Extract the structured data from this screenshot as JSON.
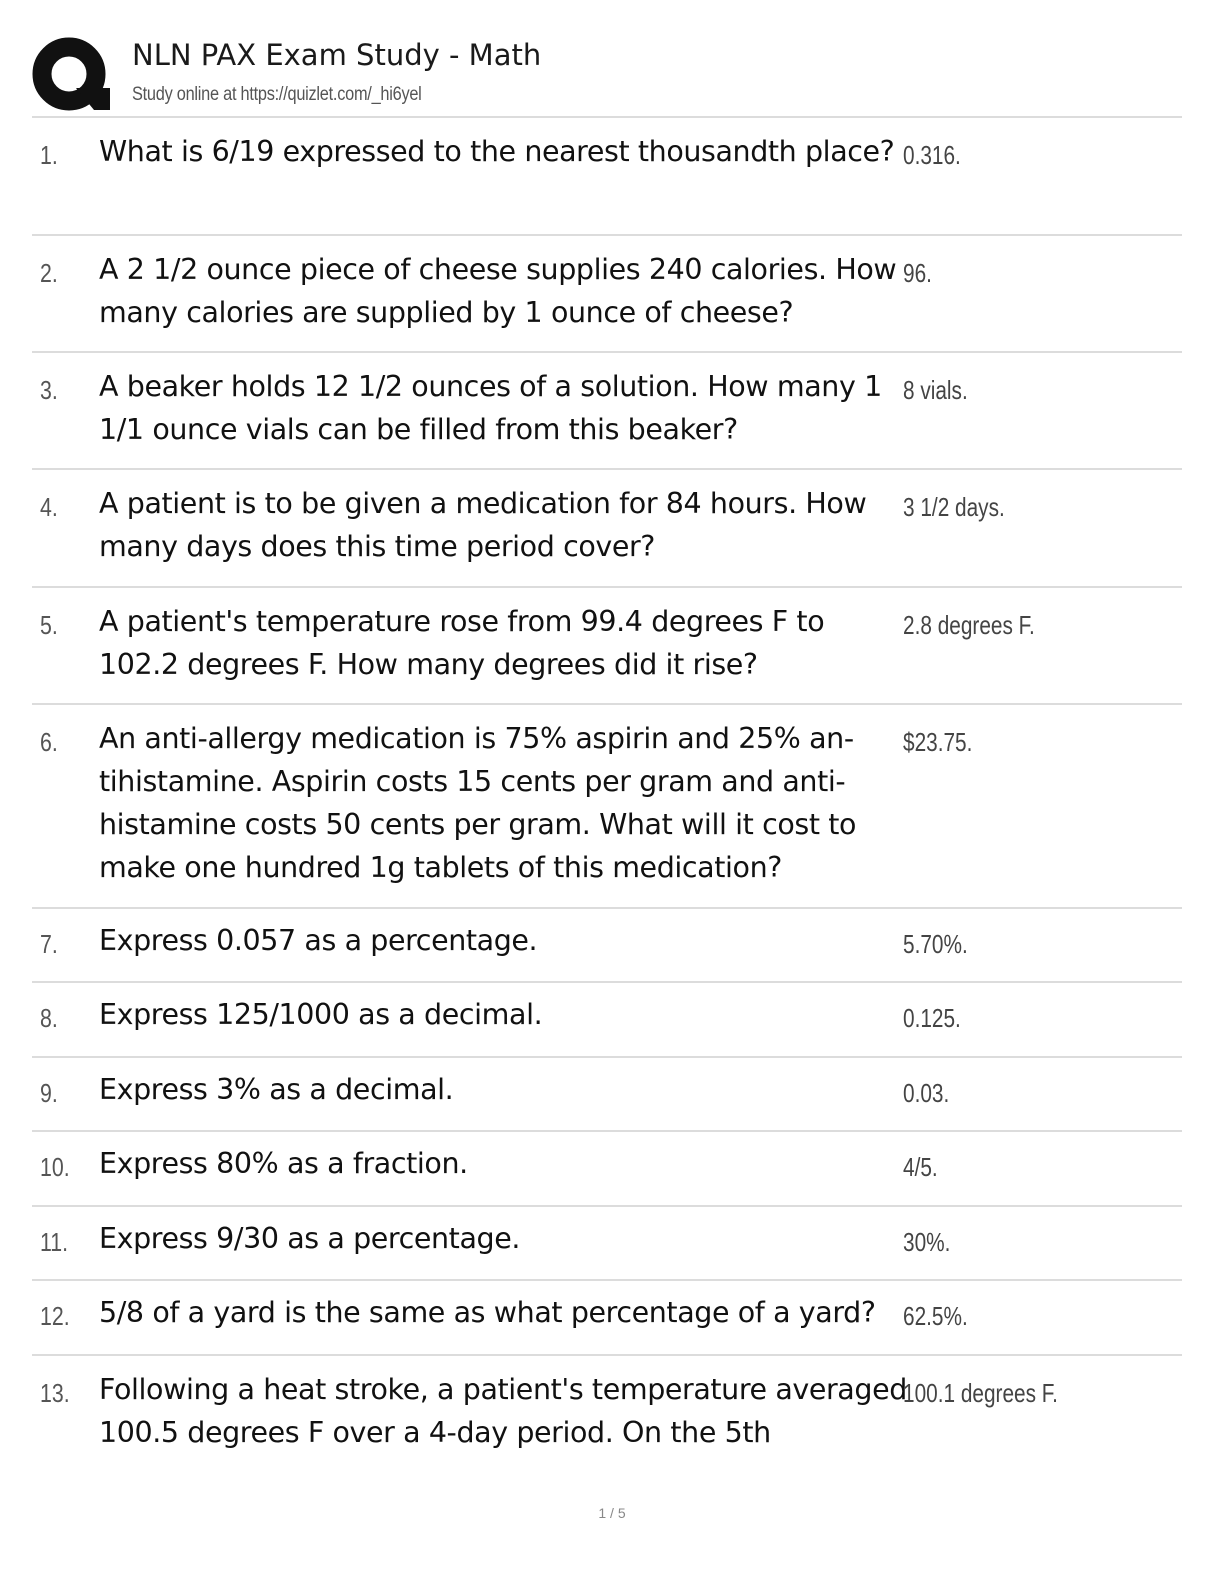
{
  "header": {
    "title": "NLN PAX Exam Study - Math",
    "subtitle": "Study online at https://quizlet.com/_hi6yel",
    "logo_icon": "quizlet-q-icon"
  },
  "items": [
    {
      "number": "1.",
      "question": "What is 6/19 expressed to the nearest thousandth place?",
      "answer": "0.316."
    },
    {
      "number": "2.",
      "question": "A 2 1/2 ounce piece of cheese supplies 240 calories. How many calories are supplied by 1 ounce of cheese?",
      "answer": "96."
    },
    {
      "number": "3.",
      "question": "A beaker holds 12 1/2 ounces of a solution. How many 1 1/1 ounce vials can be filled from this beaker?",
      "answer": "8 vials."
    },
    {
      "number": "4.",
      "question": "A patient is to be given a medication for 84 hours. How many days does this time period cover?",
      "answer": "3 1/2 days."
    },
    {
      "number": "5.",
      "question": "A patient's temperature rose from 99.4 degrees F to 102.2 degrees F. How many degrees did it rise?",
      "answer": "2.8 degrees F."
    },
    {
      "number": "6.",
      "question": "An anti-allergy medication is 75% aspirin and 25% an­tihistamine. Aspirin costs 15 cents per gram and anti­histamine costs 50 cents per gram. What will it cost to make one hundred 1g tablets of this medication?",
      "answer": "$23.75."
    },
    {
      "number": "7.",
      "question": "Express 0.057 as a percentage.",
      "answer": "5.70%."
    },
    {
      "number": "8.",
      "question": "Express 125/1000 as a decimal.",
      "answer": "0.125."
    },
    {
      "number": "9.",
      "question": "Express 3% as a decimal.",
      "answer": "0.03."
    },
    {
      "number": "10.",
      "question": "Express 80% as a fraction.",
      "answer": "4/5."
    },
    {
      "number": "11.",
      "question": "Express 9/30 as a percentage.",
      "answer": "30%."
    },
    {
      "number": "12.",
      "question": "5/8 of a yard is the same as what percentage of a yard?",
      "answer": "62.5%."
    },
    {
      "number": "13.",
      "question": "Following a heat stroke, a patient's temperature aver­aged 100.5 degrees F over a 4-day period. On the 5th",
      "answer": "100.1 degrees F."
    }
  ],
  "footer": {
    "page": "1 / 5"
  }
}
